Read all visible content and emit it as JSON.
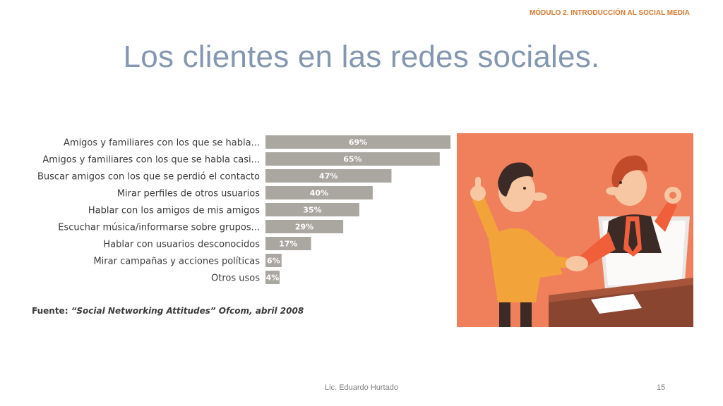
{
  "header": {
    "module_tag": "MÓDULO 2. INTRODUCCIÓN AL SOCIAL MEDIA"
  },
  "slide": {
    "title": "Los clientes en las redes sociales."
  },
  "chart_data": {
    "type": "bar",
    "orientation": "horizontal",
    "categories": [
      "Amigos y familiares con los que se habla...",
      "Amigos y familiares con los que se habla casi...",
      "Buscar amigos con los que se perdió el contacto",
      "Mirar perfiles de otros usuarios",
      "Hablar con los amigos de mis amigos",
      "Escuchar música/informarse sobre grupos...",
      "Hablar con usuarios desconocidos",
      "Mirar campañas y acciones políticas",
      "Otros usos"
    ],
    "values": [
      69,
      65,
      47,
      40,
      35,
      29,
      17,
      6,
      4
    ],
    "value_labels": [
      "69%",
      "65%",
      "47%",
      "40%",
      "35%",
      "29%",
      "17%",
      "6%",
      "4%"
    ],
    "title": "",
    "xlabel": "",
    "ylabel": "",
    "xlim": [
      0,
      69
    ],
    "grid": false,
    "bar_color": "#aaa6a0"
  },
  "source": {
    "prefix": "Fuente: ",
    "citation": "“Social Networking Attitudes” Ofcom, abril 2008"
  },
  "illustration": {
    "icon": "handshake-illustration"
  },
  "footer": {
    "author": "Lic. Eduardo Hurtado",
    "page_number": "15"
  }
}
